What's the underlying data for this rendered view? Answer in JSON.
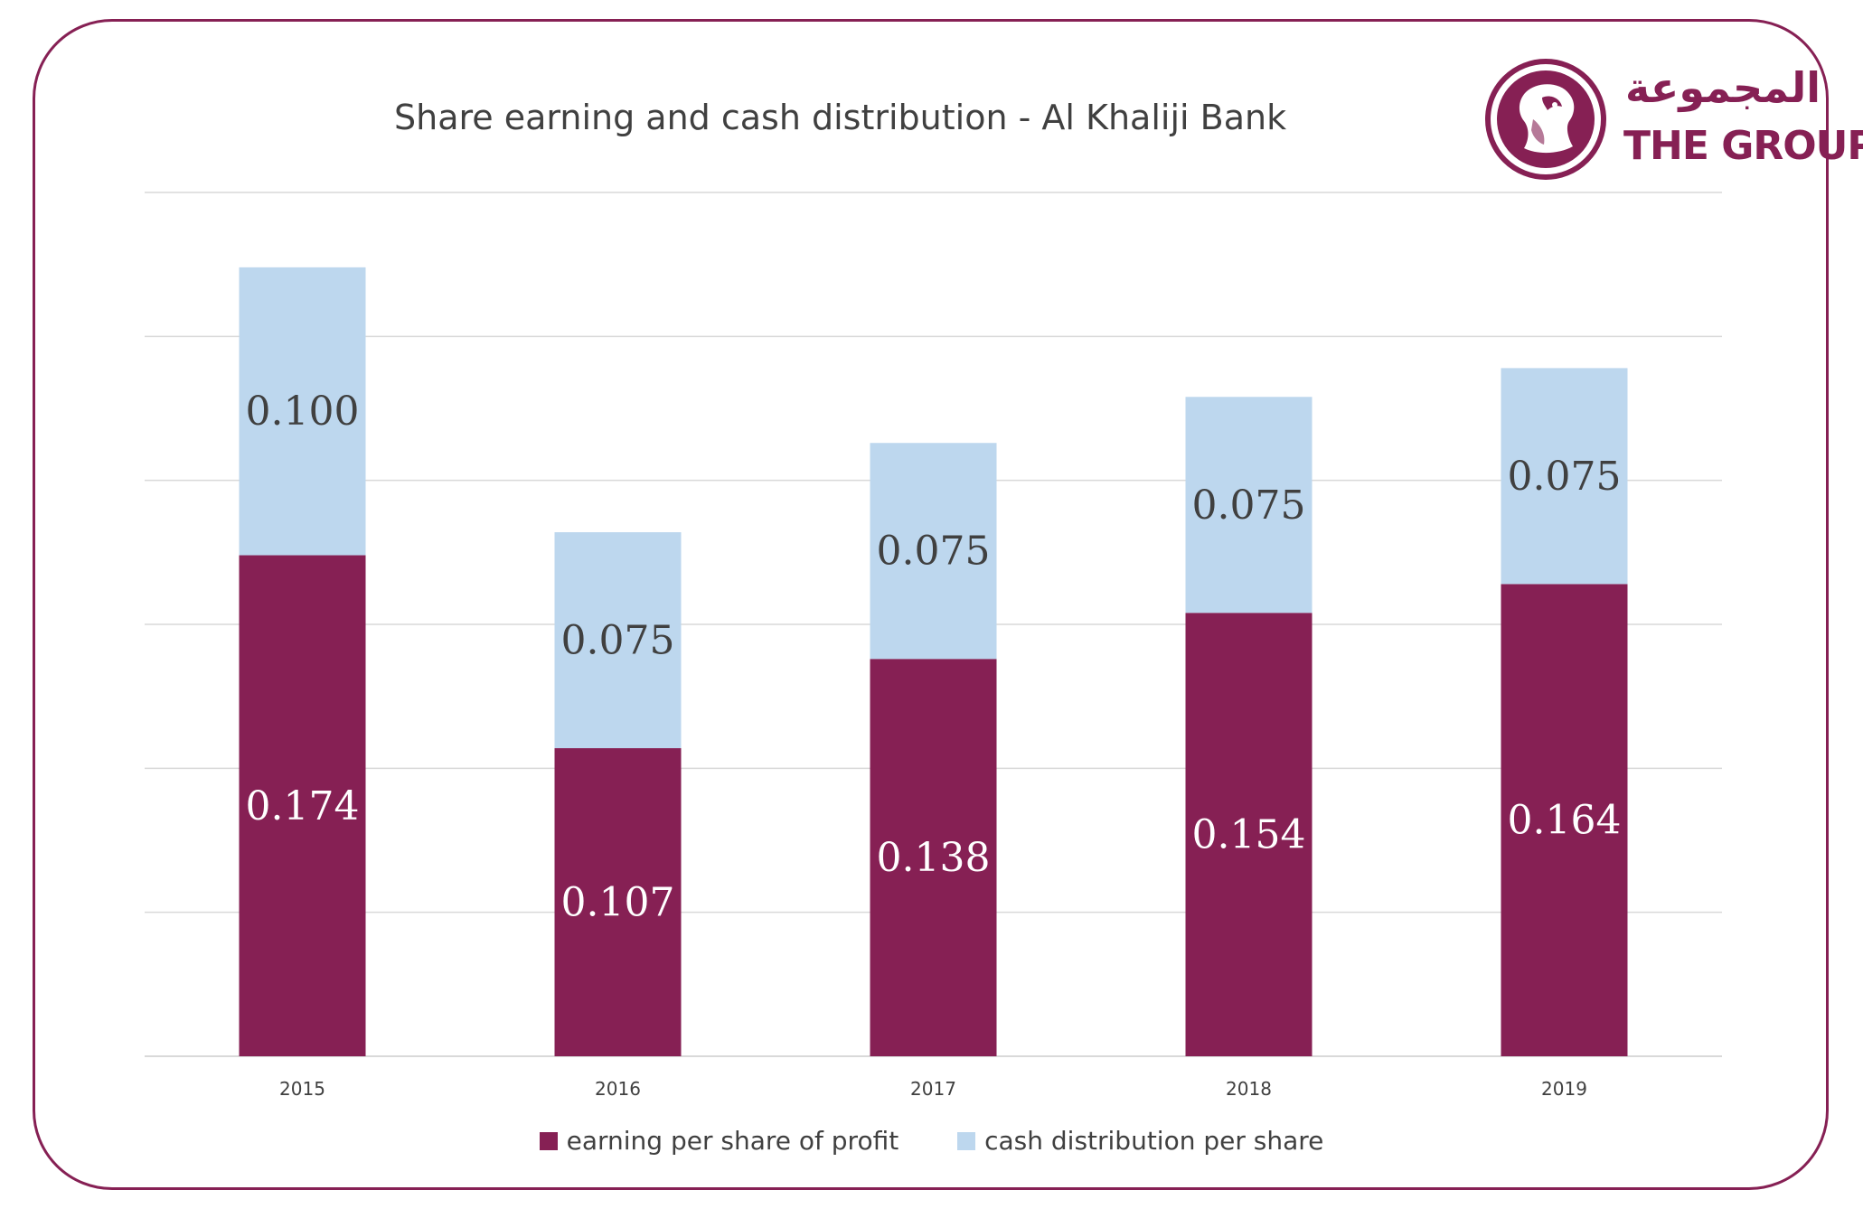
{
  "colors": {
    "frame": "#862054",
    "earning": "#862054",
    "cash": "#bdd7ee",
    "grid": "#d9d9d9",
    "text_dark": "#404040",
    "label_on_dark": "#ffffff"
  },
  "logo": {
    "arabic": "المجموعة",
    "english": "THE GROUP",
    "icon": "falcon-emblem-icon"
  },
  "chart_data": {
    "type": "bar",
    "stacked": true,
    "title": "Share earning and cash distribution - Al Khaliji Bank",
    "xlabel": "",
    "ylabel": "",
    "categories": [
      "2015",
      "2016",
      "2017",
      "2018",
      "2019"
    ],
    "series": [
      {
        "name": "earning per share of profit",
        "values": [
          0.174,
          0.107,
          0.138,
          0.154,
          0.164
        ],
        "labels": [
          "0.174",
          "0.107",
          "0.138",
          "0.154",
          "0.164"
        ]
      },
      {
        "name": "cash distribution per share",
        "values": [
          0.1,
          0.075,
          0.075,
          0.075,
          0.075
        ],
        "labels": [
          "0.100",
          "0.075",
          "0.075",
          "0.075",
          "0.075"
        ]
      }
    ],
    "ylim": [
      0,
      0.3
    ],
    "grid": true,
    "y_axis_visible": false,
    "legend_position": "bottom"
  }
}
